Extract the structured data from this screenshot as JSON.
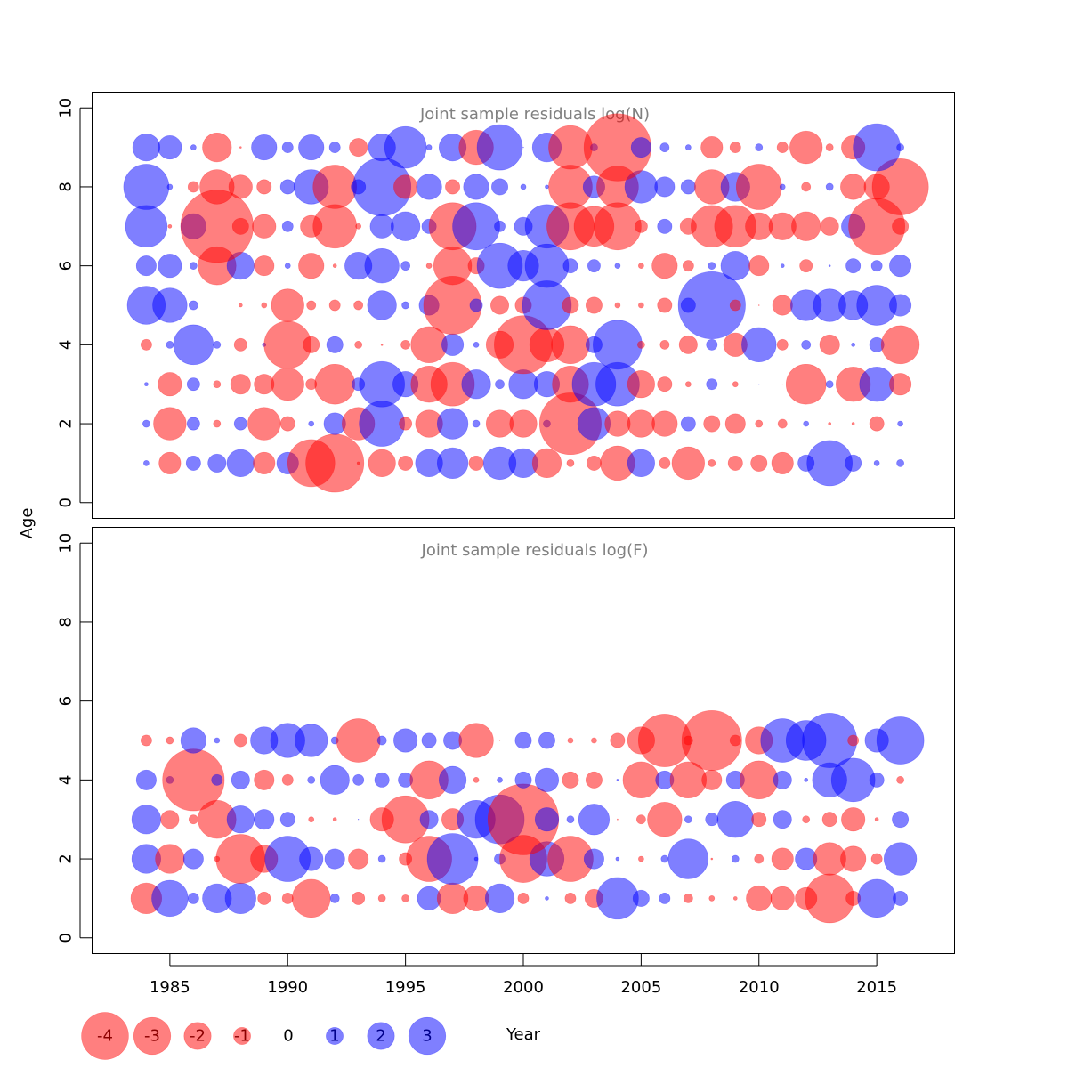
{
  "chart_data": {
    "type": "scatter",
    "encoding": "bubble: size = |residual|, red = negative, blue = positive",
    "xlabel": "Year",
    "ylabel": "Age",
    "xlim": [
      1981.7,
      2018.3
    ],
    "x_ticks": [
      1985,
      1990,
      1995,
      2000,
      2005,
      2010,
      2015
    ],
    "y_ticks": [
      0,
      2,
      4,
      6,
      8,
      10
    ],
    "colors": {
      "negative": "#ff0000",
      "positive": "#0000ff",
      "fill_opacity": 0.5,
      "title_color": "#808080"
    },
    "years": [
      1984,
      1985,
      1986,
      1987,
      1988,
      1989,
      1990,
      1991,
      1992,
      1993,
      1994,
      1995,
      1996,
      1997,
      1998,
      1999,
      2000,
      2001,
      2002,
      2003,
      2004,
      2005,
      2006,
      2007,
      2008,
      2009,
      2010,
      2011,
      2012,
      2013,
      2014,
      2015,
      2016
    ],
    "legend": {
      "values": [
        -4,
        -3,
        -2,
        -1,
        0,
        1,
        2,
        3
      ],
      "labels": [
        "-4",
        "-3",
        "-2",
        "-1",
        "0",
        "1",
        "2",
        "3"
      ]
    },
    "panels": [
      {
        "title": "Joint sample residuals log(N)",
        "ylim": [
          -0.4,
          10.4
        ],
        "ages": [
          1,
          2,
          3,
          4,
          5,
          6,
          7,
          8,
          9
        ],
        "residuals": [
          [
            0.3,
            -1.2,
            0.8,
            1.0,
            1.5,
            -1.2,
            1.2,
            -2.6,
            -3.2,
            -0.15,
            -1.5,
            -0.8,
            1.5,
            1.7,
            -0.8,
            1.8,
            1.6,
            -1.6,
            -0.4,
            -0.8,
            -1.9,
            1.5,
            -0.6,
            -1.8,
            -0.4,
            -0.8,
            -0.9,
            -1.2,
            0.9,
            2.5,
            0.9,
            0.3,
            0.4
          ],
          [
            0.4,
            -1.8,
            0.7,
            -0.4,
            0.7,
            -1.8,
            -0.8,
            0.3,
            1.2,
            -1.8,
            2.5,
            -0.7,
            -1.5,
            1.7,
            0.4,
            -1.5,
            -1.5,
            0.4,
            -3.4,
            1.8,
            -1.4,
            -1.5,
            -1.4,
            0.8,
            -0.9,
            -1.1,
            -0.4,
            -0.5,
            0.3,
            -0.15,
            -0.15,
            -0.8,
            0.3
          ],
          [
            0.2,
            -1.3,
            0.7,
            -0.4,
            -1.1,
            -1.1,
            -1.8,
            -0.6,
            -2.2,
            0.7,
            2.5,
            1.4,
            -2.0,
            -2.4,
            1.6,
            0.5,
            1.6,
            1.4,
            -2.0,
            2.4,
            2.4,
            -1.5,
            -0.8,
            -0.3,
            0.6,
            -0.3,
            0.04,
            -0.02,
            -2.2,
            0.4,
            -1.9,
            1.9,
            -1.2
          ],
          [
            -0.6,
            0.4,
            2.2,
            0.4,
            -0.7,
            0.2,
            -2.6,
            -0.9,
            0.9,
            -0.4,
            -0.1,
            -0.5,
            -2.0,
            1.2,
            0.3,
            -1.5,
            -3.2,
            -1.9,
            -2.1,
            0.9,
            2.7,
            -0.4,
            -0.5,
            -1.0,
            0.6,
            -1.3,
            1.9,
            -0.6,
            0.5,
            -1.1,
            0.2,
            0.8,
            -2.1
          ],
          [
            2.1,
            1.9,
            0.5,
            0.0,
            -0.2,
            -0.3,
            -1.8,
            -0.5,
            -0.6,
            -0.5,
            1.6,
            0.4,
            1.1,
            -3.2,
            0.7,
            -1.0,
            -0.9,
            2.7,
            -0.9,
            -0.9,
            -0.3,
            -0.3,
            -0.8,
            0.8,
            3.7,
            -0.6,
            -0.05,
            -1.1,
            1.7,
            1.8,
            1.6,
            2.2,
            1.2
          ],
          [
            1.1,
            1.3,
            0.4,
            -2.1,
            1.5,
            -1.1,
            0.3,
            -1.4,
            -0.2,
            1.5,
            1.9,
            0.5,
            -0.3,
            -2.1,
            -0.9,
            2.5,
            1.7,
            2.4,
            0.8,
            0.7,
            0.3,
            -0.3,
            -1.4,
            -0.6,
            0.4,
            1.6,
            -1.1,
            0.2,
            -0.7,
            0.1,
            0.8,
            0.6,
            1.2
          ],
          [
            2.3,
            -0.2,
            1.4,
            -4.0,
            -0.9,
            -1.3,
            0.6,
            -1.2,
            -2.4,
            -0.3,
            1.3,
            1.6,
            0.8,
            -2.6,
            2.6,
            0.6,
            1.0,
            2.4,
            -2.6,
            -2.2,
            -2.6,
            -0.7,
            0.8,
            -0.9,
            -2.3,
            -2.3,
            -1.5,
            -1.5,
            -1.6,
            -1.0,
            1.3,
            -3.1,
            -0.9
          ],
          [
            2.5,
            0.3,
            -0.6,
            -1.9,
            -1.3,
            -0.8,
            0.8,
            1.9,
            -2.4,
            0.8,
            3.2,
            -1.3,
            1.4,
            -0.8,
            1.4,
            0.9,
            0.3,
            0.2,
            -2.4,
            1.2,
            -2.3,
            1.8,
            1.1,
            0.8,
            -1.9,
            1.6,
            -2.5,
            0.3,
            -0.5,
            0.4,
            -1.4,
            -1.4,
            -3.1
          ],
          [
            1.5,
            1.3,
            0.3,
            -1.6,
            -0.1,
            1.4,
            0.6,
            1.4,
            0.6,
            -1.0,
            1.5,
            2.3,
            0.3,
            1.5,
            -1.9,
            2.5,
            0.04,
            1.6,
            -2.4,
            0.4,
            -3.7,
            1.1,
            0.5,
            0.3,
            -1.2,
            -0.6,
            0.4,
            -0.6,
            -1.8,
            -0.4,
            -1.3,
            2.6,
            0.4
          ]
        ]
      },
      {
        "title": "Joint sample residuals log(F)",
        "ylim": [
          -0.4,
          10.4
        ],
        "ages": [
          1,
          2,
          3,
          4,
          5
        ],
        "residuals": [
          [
            -1.7,
            2.0,
            0.6,
            1.6,
            1.7,
            -0.7,
            -0.6,
            -2.1,
            0.5,
            -0.7,
            -0.4,
            -0.4,
            1.3,
            -1.7,
            -1.4,
            1.6,
            -0.6,
            0.2,
            -0.6,
            -1.0,
            2.3,
            0.9,
            0.6,
            -0.5,
            -0.3,
            -0.2,
            -1.4,
            -1.3,
            -1.2,
            -2.7,
            -0.8,
            2.1,
            0.8
          ],
          [
            1.6,
            -1.6,
            1.1,
            -0.3,
            -2.7,
            -1.5,
            2.5,
            1.3,
            1.1,
            -1.1,
            0.4,
            -0.7,
            -2.5,
            2.8,
            0.2,
            0.6,
            -2.6,
            1.9,
            -2.5,
            1.1,
            0.2,
            -0.3,
            0.4,
            2.2,
            -0.1,
            0.4,
            -0.5,
            -1.2,
            1.2,
            -1.8,
            -1.4,
            -0.6,
            1.8
          ],
          [
            1.6,
            -1.0,
            -0.5,
            -2.1,
            1.5,
            1.1,
            0.8,
            -0.3,
            -0.2,
            0.04,
            -1.3,
            -2.6,
            1.0,
            -1.2,
            2.1,
            2.7,
            -3.9,
            1.3,
            0.4,
            1.7,
            -0.06,
            -0.5,
            -1.9,
            0.4,
            0.7,
            2.0,
            -0.8,
            1.0,
            -0.4,
            -0.8,
            -1.3,
            -0.2,
            0.9
          ],
          [
            1.1,
            0.4,
            -3.4,
            0.6,
            1.0,
            -1.1,
            -0.6,
            0.4,
            1.6,
            0.6,
            0.8,
            0.8,
            -2.1,
            1.5,
            -0.3,
            0.3,
            0.9,
            1.3,
            -0.9,
            -0.9,
            0.1,
            -2.0,
            1.0,
            -2.0,
            -1.1,
            1.0,
            -2.1,
            1.0,
            0.2,
            1.9,
            2.4,
            0.8,
            -0.4
          ],
          [
            -0.6,
            -0.4,
            1.4,
            0.3,
            -0.7,
            1.5,
            1.9,
            1.8,
            0.4,
            -2.4,
            0.5,
            1.3,
            0.8,
            1.0,
            -1.9,
            -0.03,
            0.9,
            0.9,
            -0.3,
            -0.3,
            -0.8,
            -1.5,
            -2.9,
            -0.5,
            -3.3,
            -0.6,
            -1.5,
            2.4,
            2.2,
            3.0,
            -0.6,
            1.3,
            2.6
          ]
        ]
      }
    ]
  }
}
